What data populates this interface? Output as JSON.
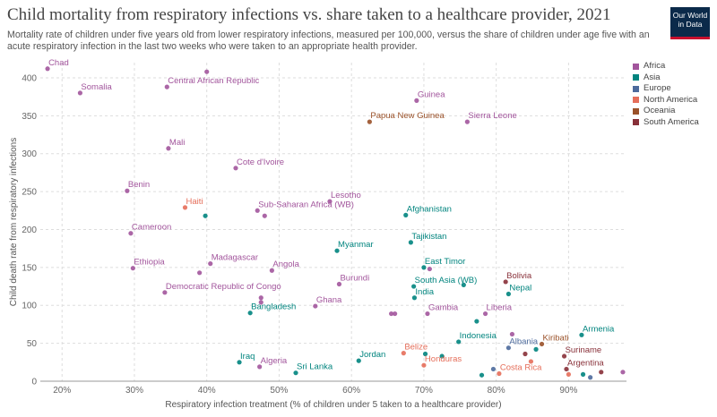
{
  "header": {
    "title": "Child mortality from respiratory infections vs. share taken to a healthcare provider, 2021",
    "subtitle": "Mortality rate of children under five years old from lower respiratory infections, measured per 100,000, versus the share of children under age five with an acute respiratory infection in the last two weeks who were taken to an appropriate health provider.",
    "logo_line1": "Our World",
    "logo_line2": "in Data"
  },
  "colors": {
    "Africa": "#a2559c",
    "Asia": "#00847e",
    "Europe": "#4c6a9c",
    "North America": "#e56e5a",
    "Oceania": "#9a5129",
    "South America": "#883039"
  },
  "chart_data": {
    "type": "scatter",
    "xlabel": "Respiratory infection treatment (% of children under 5 taken to a healthcare provider)",
    "ylabel": "Child death rate from respiratory infections",
    "xlim": [
      17,
      98
    ],
    "ylim": [
      0,
      420
    ],
    "xticks": [
      20,
      30,
      40,
      50,
      60,
      70,
      80,
      90
    ],
    "xtick_labels": [
      "20%",
      "30%",
      "40%",
      "50%",
      "60%",
      "70%",
      "80%",
      "90%"
    ],
    "yticks": [
      0,
      50,
      100,
      150,
      200,
      250,
      300,
      350,
      400
    ],
    "grid": "dashed",
    "legend": [
      "Africa",
      "Asia",
      "Europe",
      "North America",
      "Oceania",
      "South America"
    ],
    "legend_position": "right",
    "points": [
      {
        "label": "Chad",
        "region": "Africa",
        "x": 18,
        "y": 412
      },
      {
        "label": "",
        "region": "Africa",
        "x": 40,
        "y": 408
      },
      {
        "label": "Central African Republic",
        "region": "Africa",
        "x": 34.5,
        "y": 388
      },
      {
        "label": "Somalia",
        "region": "Africa",
        "x": 22.5,
        "y": 380
      },
      {
        "label": "Guinea",
        "region": "Africa",
        "x": 69,
        "y": 370
      },
      {
        "label": "Papua New Guinea",
        "region": "Oceania",
        "x": 62.5,
        "y": 342
      },
      {
        "label": "Sierra Leone",
        "region": "Africa",
        "x": 76,
        "y": 342
      },
      {
        "label": "Mali",
        "region": "Africa",
        "x": 34.7,
        "y": 307
      },
      {
        "label": "Cote d'Ivoire",
        "region": "Africa",
        "x": 44,
        "y": 281
      },
      {
        "label": "Benin",
        "region": "Africa",
        "x": 29,
        "y": 251
      },
      {
        "label": "Lesotho",
        "region": "Africa",
        "x": 57,
        "y": 237
      },
      {
        "label": "Haiti",
        "region": "North America",
        "x": 37,
        "y": 229
      },
      {
        "label": "Sub-Saharan Africa (WB)",
        "region": "Africa",
        "x": 47,
        "y": 225
      },
      {
        "label": "",
        "region": "Asia",
        "x": 39.8,
        "y": 218
      },
      {
        "label": "",
        "region": "Africa",
        "x": 48,
        "y": 218
      },
      {
        "label": "Afghanistan",
        "region": "Asia",
        "x": 67.5,
        "y": 219
      },
      {
        "label": "Cameroon",
        "region": "Africa",
        "x": 29.5,
        "y": 195
      },
      {
        "label": "Tajikistan",
        "region": "Asia",
        "x": 68.2,
        "y": 183
      },
      {
        "label": "Myanmar",
        "region": "Asia",
        "x": 58,
        "y": 172
      },
      {
        "label": "Madagascar",
        "region": "Africa",
        "x": 40.5,
        "y": 155
      },
      {
        "label": "Ethiopia",
        "region": "Africa",
        "x": 29.8,
        "y": 149
      },
      {
        "label": "",
        "region": "Africa",
        "x": 39,
        "y": 143
      },
      {
        "label": "Angola",
        "region": "Africa",
        "x": 49,
        "y": 146
      },
      {
        "label": "East Timor",
        "region": "Asia",
        "x": 70,
        "y": 150
      },
      {
        "label": "",
        "region": "Africa",
        "x": 70.8,
        "y": 148
      },
      {
        "label": "Bolivia",
        "region": "South America",
        "x": 81.3,
        "y": 131
      },
      {
        "label": "Burundi",
        "region": "Africa",
        "x": 58.3,
        "y": 128
      },
      {
        "label": "South Asia (WB)",
        "region": "Asia",
        "x": 68.6,
        "y": 125
      },
      {
        "label": "",
        "region": "Asia",
        "x": 75.5,
        "y": 127
      },
      {
        "label": "Democratic Republic of Congo",
        "region": "Africa",
        "x": 34.2,
        "y": 117
      },
      {
        "label": "Nepal",
        "region": "Asia",
        "x": 81.7,
        "y": 115
      },
      {
        "label": "India",
        "region": "Asia",
        "x": 68.7,
        "y": 110
      },
      {
        "label": "",
        "region": "Africa",
        "x": 47.5,
        "y": 110
      },
      {
        "label": "",
        "region": "Africa",
        "x": 47.5,
        "y": 104
      },
      {
        "label": "Ghana",
        "region": "Africa",
        "x": 55,
        "y": 99
      },
      {
        "label": "Bangladesh",
        "region": "Asia",
        "x": 46,
        "y": 90
      },
      {
        "label": "",
        "region": "Africa",
        "x": 65.5,
        "y": 89
      },
      {
        "label": "",
        "region": "Africa",
        "x": 66,
        "y": 89
      },
      {
        "label": "Gambia",
        "region": "Africa",
        "x": 70.5,
        "y": 89
      },
      {
        "label": "Liberia",
        "region": "Africa",
        "x": 78.5,
        "y": 89
      },
      {
        "label": "",
        "region": "Asia",
        "x": 77.3,
        "y": 79
      },
      {
        "label": "Armenia",
        "region": "Asia",
        "x": 91.8,
        "y": 61
      },
      {
        "label": "",
        "region": "Africa",
        "x": 82.2,
        "y": 62
      },
      {
        "label": "Indonesia",
        "region": "Asia",
        "x": 74.8,
        "y": 52
      },
      {
        "label": "Kiribati",
        "region": "Oceania",
        "x": 86.3,
        "y": 49
      },
      {
        "label": "Albania",
        "region": "Europe",
        "x": 81.7,
        "y": 44
      },
      {
        "label": "",
        "region": "South America",
        "x": 84,
        "y": 36
      },
      {
        "label": "",
        "region": "Asia",
        "x": 85.5,
        "y": 42
      },
      {
        "label": "Belize",
        "region": "North America",
        "x": 67.2,
        "y": 37
      },
      {
        "label": "",
        "region": "Asia",
        "x": 70.2,
        "y": 36
      },
      {
        "label": "Suriname",
        "region": "South America",
        "x": 89.4,
        "y": 33
      },
      {
        "label": "Jordan",
        "region": "Asia",
        "x": 61,
        "y": 27
      },
      {
        "label": "Honduras",
        "region": "North America",
        "x": 70,
        "y": 21
      },
      {
        "label": "",
        "region": "Asia",
        "x": 72.5,
        "y": 33
      },
      {
        "label": "",
        "region": "North America",
        "x": 84.8,
        "y": 26
      },
      {
        "label": "Iraq",
        "region": "Asia",
        "x": 44.5,
        "y": 25
      },
      {
        "label": "Algeria",
        "region": "Africa",
        "x": 47.3,
        "y": 19
      },
      {
        "label": "Argentina",
        "region": "South America",
        "x": 89.7,
        "y": 16
      },
      {
        "label": "Costa Rica",
        "region": "North America",
        "x": 80.4,
        "y": 10
      },
      {
        "label": "",
        "region": "Europe",
        "x": 79.6,
        "y": 16
      },
      {
        "label": "Sri Lanka",
        "region": "Asia",
        "x": 52.3,
        "y": 11
      },
      {
        "label": "",
        "region": "Asia",
        "x": 78,
        "y": 8
      },
      {
        "label": "",
        "region": "North America",
        "x": 90,
        "y": 9
      },
      {
        "label": "",
        "region": "Asia",
        "x": 92,
        "y": 9
      },
      {
        "label": "",
        "region": "Europe",
        "x": 93,
        "y": 5
      },
      {
        "label": "",
        "region": "South America",
        "x": 94.5,
        "y": 12
      },
      {
        "label": "",
        "region": "Africa",
        "x": 97.5,
        "y": 12
      }
    ]
  }
}
